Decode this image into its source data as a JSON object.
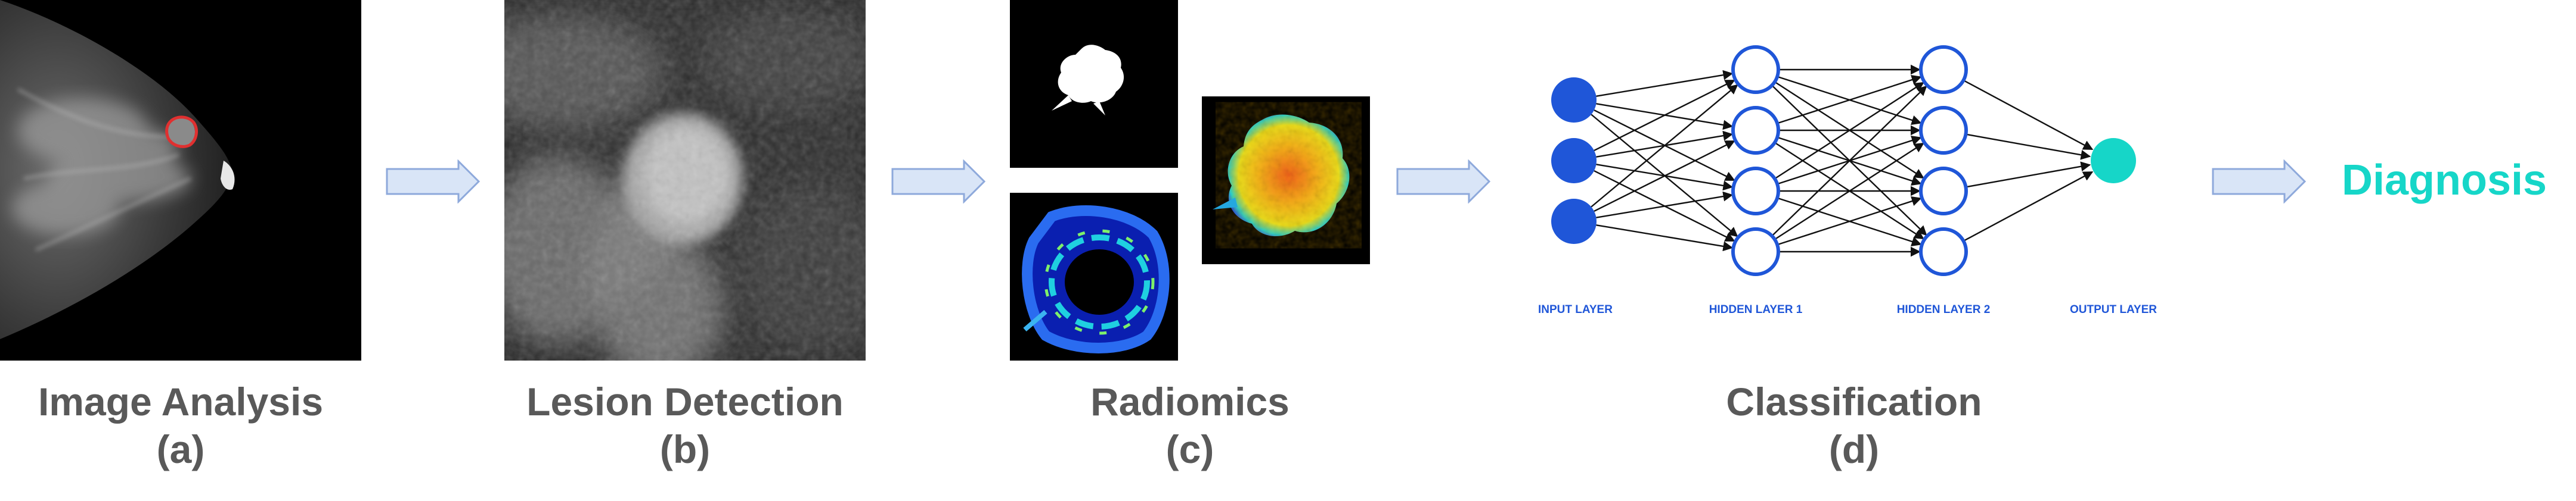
{
  "steps": [
    {
      "title": "Image Analysis",
      "letter": "(a)"
    },
    {
      "title": "Lesion Detection",
      "letter": "(b)"
    },
    {
      "title": "Radiomics",
      "letter": "(c)"
    },
    {
      "title": "Classification",
      "letter": "(d)"
    }
  ],
  "network": {
    "layers": [
      "INPUT LAYER",
      "HIDDEN LAYER 1",
      "HIDDEN LAYER 2",
      "OUTPUT LAYER"
    ],
    "neurons": [
      3,
      4,
      4,
      1
    ]
  },
  "result": "Diagnosis",
  "colors": {
    "caption": "#595959",
    "arrow_fill": "#d9e5f7",
    "arrow_stroke": "#8ea9db",
    "neuron_blue": "#1f56d8",
    "output_teal": "#16d6c8",
    "lesion_outline": "#e03030"
  }
}
